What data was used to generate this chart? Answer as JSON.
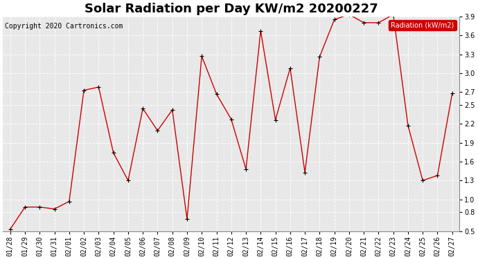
{
  "title": "Solar Radiation per Day KW/m2 20200227",
  "copyright": "Copyright 2020 Cartronics.com",
  "legend_label": "Radiation (kW/m2)",
  "dates": [
    "01/28",
    "01/29",
    "01/30",
    "01/31",
    "02/01",
    "02/02",
    "02/03",
    "02/04",
    "02/05",
    "02/06",
    "02/07",
    "02/08",
    "02/09",
    "02/10",
    "02/11",
    "02/12",
    "02/13",
    "02/14",
    "02/15",
    "02/16",
    "02/17",
    "02/18",
    "02/19",
    "02/20",
    "02/21",
    "02/22",
    "02/23",
    "02/24",
    "02/25",
    "02/26",
    "02/27"
  ],
  "values": [
    0.53,
    0.88,
    0.88,
    0.85,
    0.97,
    2.73,
    2.78,
    1.74,
    1.3,
    2.44,
    2.09,
    2.42,
    0.69,
    3.27,
    2.67,
    2.27,
    1.48,
    3.67,
    2.26,
    3.08,
    1.43,
    3.26,
    3.85,
    3.93,
    3.8,
    3.8,
    3.93,
    2.17,
    1.3,
    1.38,
    2.68
  ],
  "ylim": [
    0.5,
    3.9
  ],
  "yticks": [
    0.5,
    0.8,
    1.0,
    1.3,
    1.6,
    1.9,
    2.2,
    2.5,
    2.7,
    3.0,
    3.3,
    3.6,
    3.9
  ],
  "line_color": "#cc0000",
  "marker_color": "#000000",
  "plot_bg_color": "#e8e8e8",
  "fig_bg_color": "#ffffff",
  "grid_color": "#ffffff",
  "title_fontsize": 13,
  "tick_fontsize": 7,
  "copyright_fontsize": 7,
  "legend_bg_color": "#cc0000",
  "legend_text_color": "#ffffff"
}
